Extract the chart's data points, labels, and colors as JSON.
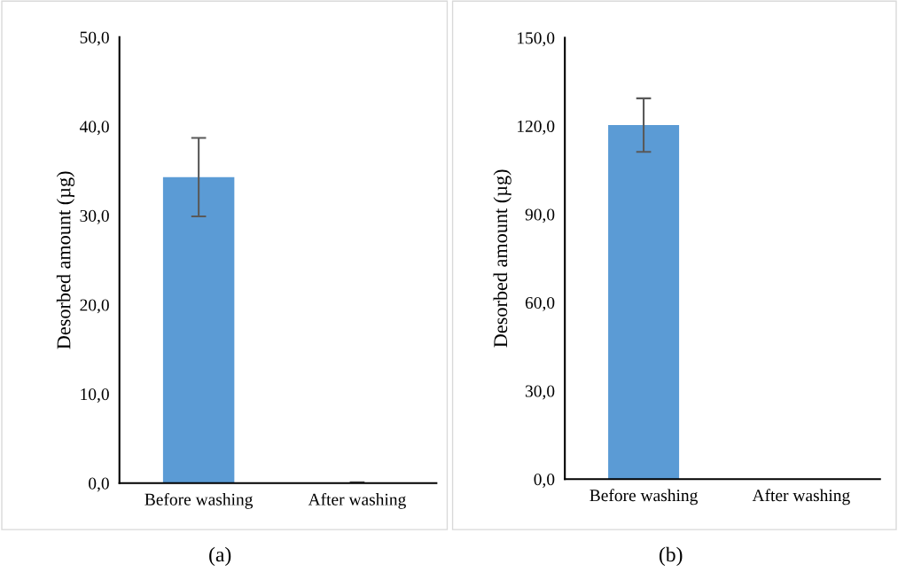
{
  "chart_data": [
    {
      "type": "bar",
      "categories": [
        "Before washing",
        "After washing"
      ],
      "values": [
        34.3,
        0
      ],
      "errors": [
        4.4,
        0.1
      ],
      "color": "#5b9bd5",
      "ylabel": "Desorbed amount (µg)",
      "ylim": [
        0,
        50
      ],
      "yticks": [
        {
          "value": 0,
          "label": "0,0"
        },
        {
          "value": 10,
          "label": "10,0"
        },
        {
          "value": 20,
          "label": "20,0"
        },
        {
          "value": 30,
          "label": "30,0"
        },
        {
          "value": 40,
          "label": "40,0"
        },
        {
          "value": 50,
          "label": "50,0"
        }
      ],
      "annotations": [
        "(a)"
      ]
    },
    {
      "type": "bar",
      "categories": [
        "Before washing",
        "After washing"
      ],
      "values": [
        120.3,
        0
      ],
      "errors": [
        9.1,
        null
      ],
      "color": "#5b9bd5",
      "ylabel": "Desorbed amount (µg)",
      "ylim": [
        0,
        150
      ],
      "yticks": [
        {
          "value": 0,
          "label": "0,0"
        },
        {
          "value": 30,
          "label": "30,0"
        },
        {
          "value": 60,
          "label": "60,0"
        },
        {
          "value": 90,
          "label": "90,0"
        },
        {
          "value": 120,
          "label": "120,0"
        },
        {
          "value": 150,
          "label": "150,0"
        }
      ],
      "annotations": [
        "(b)"
      ]
    }
  ]
}
